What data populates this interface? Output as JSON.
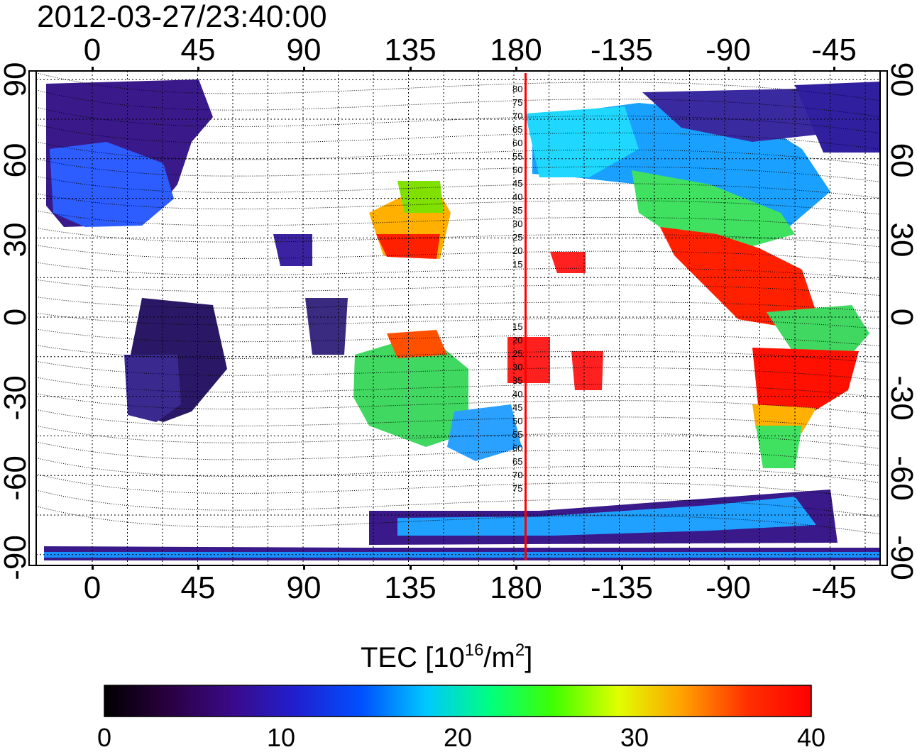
{
  "title": "2012-03-27/23:40:00",
  "map": {
    "lon_ticks": [
      "0",
      "45",
      "90",
      "135",
      "180",
      "-135",
      "-90",
      "-45"
    ],
    "lat_ticks": [
      "90",
      "60",
      "30",
      "0",
      "-30",
      "-60",
      "-90"
    ],
    "terminator_lon": 185,
    "terminator_color": "#ff0000",
    "magnetic_lat_labels": [
      "80",
      "75",
      "70",
      "65",
      "60",
      "55",
      "50",
      "45",
      "40",
      "35",
      "30",
      "25",
      "20",
      "15",
      "15",
      "20",
      "25",
      "30",
      "35",
      "40",
      "45",
      "50",
      "55",
      "60",
      "65",
      "70",
      "75"
    ]
  },
  "colorbar": {
    "label_main": "TEC  [10",
    "label_exp1": "16",
    "label_mid": "/m",
    "label_exp2": "2",
    "label_end": "]",
    "min": 0,
    "max": 40,
    "ticks": [
      "0",
      "10",
      "20",
      "30",
      "40"
    ],
    "colors": [
      "#000000",
      "#2a0040",
      "#3a0a8a",
      "#2020d0",
      "#0050ff",
      "#00c8ff",
      "#00ff80",
      "#40ff00",
      "#e0ff00",
      "#ffa000",
      "#ff3000",
      "#ff0000"
    ]
  }
}
